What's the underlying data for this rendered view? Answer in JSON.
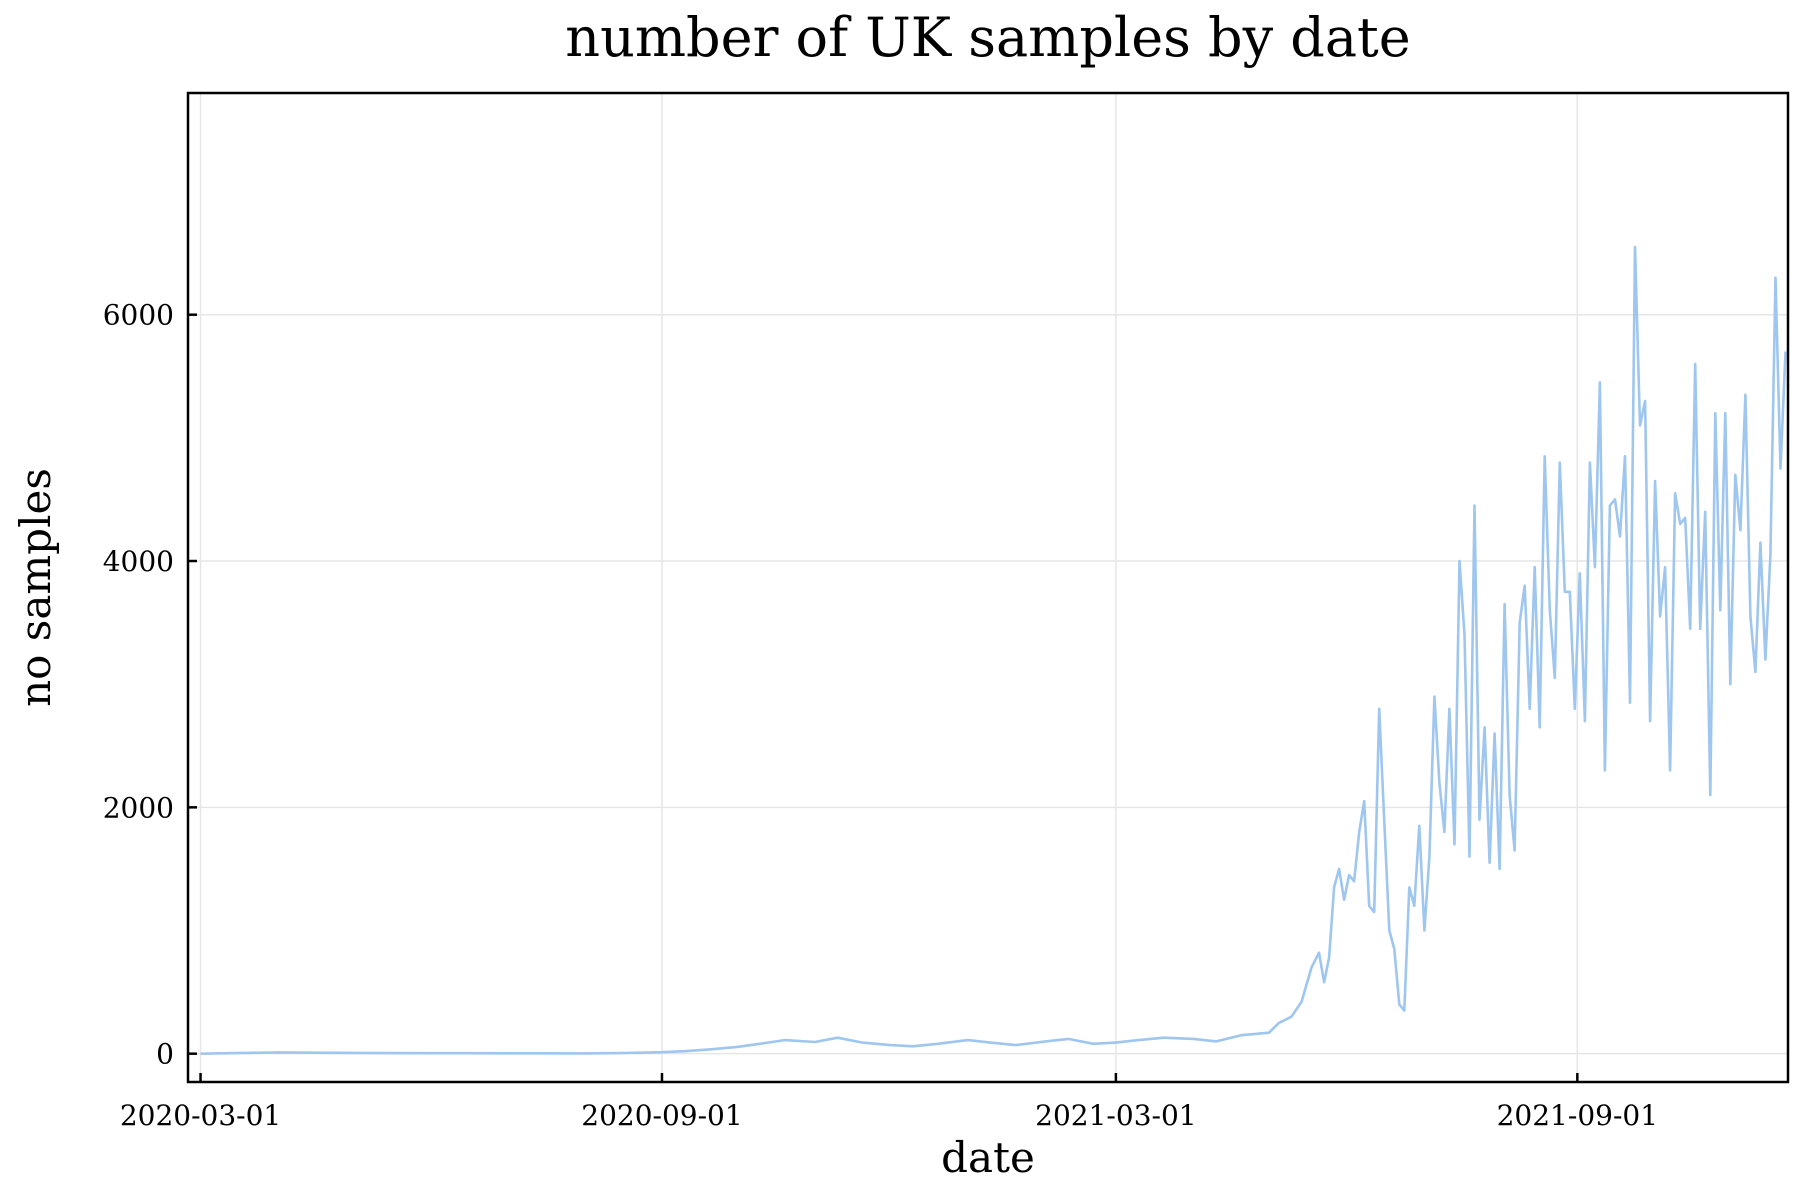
{
  "chart_data": {
    "type": "line",
    "title": "number of UK samples by date",
    "xlabel": "date",
    "ylabel": "no samples",
    "x_ticks": [
      "2020-03-01",
      "2020-09-01",
      "2021-03-01",
      "2021-09-01"
    ],
    "y_ticks": [
      0,
      2000,
      4000,
      6000
    ],
    "xlim": [
      "2020-02-25",
      "2021-11-24"
    ],
    "ylim": [
      -230,
      7800
    ],
    "grid": true,
    "legend": "none",
    "series": [
      {
        "color": "#9fc6ee",
        "points": [
          [
            "2020-03-01",
            0
          ],
          [
            "2020-03-15",
            5
          ],
          [
            "2020-04-01",
            10
          ],
          [
            "2020-04-15",
            8
          ],
          [
            "2020-05-01",
            6
          ],
          [
            "2020-05-15",
            5
          ],
          [
            "2020-06-01",
            4
          ],
          [
            "2020-06-15",
            4
          ],
          [
            "2020-07-01",
            3
          ],
          [
            "2020-07-15",
            3
          ],
          [
            "2020-08-01",
            2
          ],
          [
            "2020-08-15",
            5
          ],
          [
            "2020-09-01",
            12
          ],
          [
            "2020-09-10",
            20
          ],
          [
            "2020-09-20",
            35
          ],
          [
            "2020-10-01",
            55
          ],
          [
            "2020-10-10",
            80
          ],
          [
            "2020-10-20",
            110
          ],
          [
            "2020-11-01",
            95
          ],
          [
            "2020-11-10",
            130
          ],
          [
            "2020-11-20",
            90
          ],
          [
            "2020-12-01",
            70
          ],
          [
            "2020-12-10",
            60
          ],
          [
            "2020-12-20",
            80
          ],
          [
            "2021-01-01",
            110
          ],
          [
            "2021-01-10",
            90
          ],
          [
            "2021-01-20",
            70
          ],
          [
            "2021-02-01",
            100
          ],
          [
            "2021-02-10",
            120
          ],
          [
            "2021-02-20",
            80
          ],
          [
            "2021-03-01",
            90
          ],
          [
            "2021-03-10",
            110
          ],
          [
            "2021-03-20",
            130
          ],
          [
            "2021-04-01",
            120
          ],
          [
            "2021-04-10",
            100
          ],
          [
            "2021-04-20",
            150
          ],
          [
            "2021-05-01",
            170
          ],
          [
            "2021-05-05",
            250
          ],
          [
            "2021-05-10",
            300
          ],
          [
            "2021-05-14",
            420
          ],
          [
            "2021-05-18",
            700
          ],
          [
            "2021-05-21",
            820
          ],
          [
            "2021-05-23",
            580
          ],
          [
            "2021-05-25",
            780
          ],
          [
            "2021-05-27",
            1350
          ],
          [
            "2021-05-29",
            1500
          ],
          [
            "2021-05-31",
            1250
          ],
          [
            "2021-06-02",
            1450
          ],
          [
            "2021-06-04",
            1400
          ],
          [
            "2021-06-06",
            1800
          ],
          [
            "2021-06-08",
            2050
          ],
          [
            "2021-06-10",
            1200
          ],
          [
            "2021-06-12",
            1150
          ],
          [
            "2021-06-14",
            2800
          ],
          [
            "2021-06-16",
            1900
          ],
          [
            "2021-06-18",
            1000
          ],
          [
            "2021-06-20",
            850
          ],
          [
            "2021-06-22",
            400
          ],
          [
            "2021-06-24",
            350
          ],
          [
            "2021-06-26",
            1350
          ],
          [
            "2021-06-28",
            1200
          ],
          [
            "2021-06-30",
            1850
          ],
          [
            "2021-07-02",
            1000
          ],
          [
            "2021-07-04",
            1600
          ],
          [
            "2021-07-06",
            2900
          ],
          [
            "2021-07-08",
            2200
          ],
          [
            "2021-07-10",
            1800
          ],
          [
            "2021-07-12",
            2800
          ],
          [
            "2021-07-14",
            1700
          ],
          [
            "2021-07-16",
            4000
          ],
          [
            "2021-07-18",
            3400
          ],
          [
            "2021-07-20",
            1600
          ],
          [
            "2021-07-22",
            4450
          ],
          [
            "2021-07-24",
            1900
          ],
          [
            "2021-07-26",
            2650
          ],
          [
            "2021-07-28",
            1550
          ],
          [
            "2021-07-30",
            2600
          ],
          [
            "2021-08-01",
            1500
          ],
          [
            "2021-08-03",
            3650
          ],
          [
            "2021-08-05",
            2100
          ],
          [
            "2021-08-07",
            1650
          ],
          [
            "2021-08-09",
            3500
          ],
          [
            "2021-08-11",
            3800
          ],
          [
            "2021-08-13",
            2800
          ],
          [
            "2021-08-15",
            3950
          ],
          [
            "2021-08-17",
            2650
          ],
          [
            "2021-08-19",
            4850
          ],
          [
            "2021-08-21",
            3600
          ],
          [
            "2021-08-23",
            3050
          ],
          [
            "2021-08-25",
            4800
          ],
          [
            "2021-08-27",
            3750
          ],
          [
            "2021-08-29",
            3750
          ],
          [
            "2021-08-31",
            2800
          ],
          [
            "2021-09-02",
            3900
          ],
          [
            "2021-09-04",
            2700
          ],
          [
            "2021-09-06",
            4800
          ],
          [
            "2021-09-08",
            3950
          ],
          [
            "2021-09-10",
            5450
          ],
          [
            "2021-09-12",
            2300
          ],
          [
            "2021-09-14",
            4450
          ],
          [
            "2021-09-16",
            4500
          ],
          [
            "2021-09-18",
            4200
          ],
          [
            "2021-09-20",
            4850
          ],
          [
            "2021-09-22",
            2850
          ],
          [
            "2021-09-24",
            6550
          ],
          [
            "2021-09-26",
            5100
          ],
          [
            "2021-09-28",
            5300
          ],
          [
            "2021-09-30",
            2700
          ],
          [
            "2021-10-02",
            4650
          ],
          [
            "2021-10-04",
            3550
          ],
          [
            "2021-10-06",
            3950
          ],
          [
            "2021-10-08",
            2300
          ],
          [
            "2021-10-10",
            4550
          ],
          [
            "2021-10-12",
            4300
          ],
          [
            "2021-10-14",
            4350
          ],
          [
            "2021-10-16",
            3450
          ],
          [
            "2021-10-18",
            5600
          ],
          [
            "2021-10-20",
            3450
          ],
          [
            "2021-10-22",
            4400
          ],
          [
            "2021-10-24",
            2100
          ],
          [
            "2021-10-26",
            5200
          ],
          [
            "2021-10-28",
            3600
          ],
          [
            "2021-10-30",
            5200
          ],
          [
            "2021-11-01",
            3000
          ],
          [
            "2021-11-03",
            4700
          ],
          [
            "2021-11-05",
            4250
          ],
          [
            "2021-11-07",
            5350
          ],
          [
            "2021-11-09",
            3550
          ],
          [
            "2021-11-11",
            3100
          ],
          [
            "2021-11-13",
            4150
          ],
          [
            "2021-11-15",
            3200
          ],
          [
            "2021-11-17",
            4050
          ],
          [
            "2021-11-19",
            6300
          ],
          [
            "2021-11-21",
            4750
          ],
          [
            "2021-11-23",
            5700
          ]
        ]
      }
    ]
  }
}
